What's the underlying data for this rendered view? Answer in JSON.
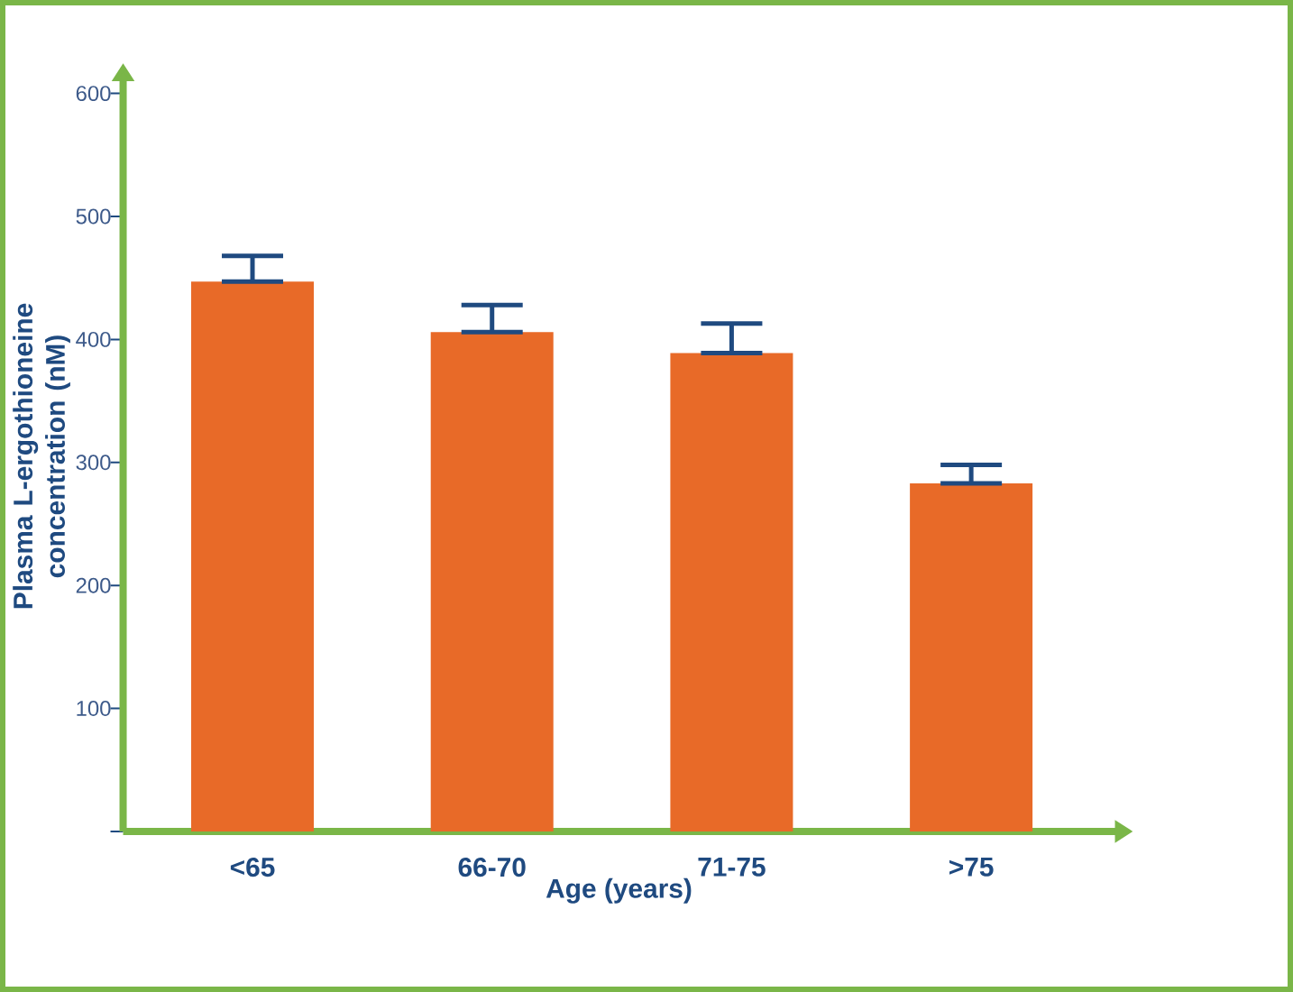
{
  "chart_data": {
    "type": "bar",
    "xlabel": "Age (years)",
    "ylabel": "Plasma L-ergothioneine concentration (nM)",
    "categories": [
      "<65",
      "66-70",
      "71-75",
      ">75"
    ],
    "values": [
      447,
      406,
      389,
      283
    ],
    "errors": [
      [
        447,
        468
      ],
      [
        406,
        428
      ],
      [
        389,
        413
      ],
      [
        283,
        298
      ]
    ],
    "color": "#e86a28",
    "ylim": [
      0,
      610
    ],
    "yticks": [
      {
        "value": 0,
        "label": null
      },
      100,
      200,
      300,
      400,
      500,
      600
    ],
    "grid": false
  }
}
